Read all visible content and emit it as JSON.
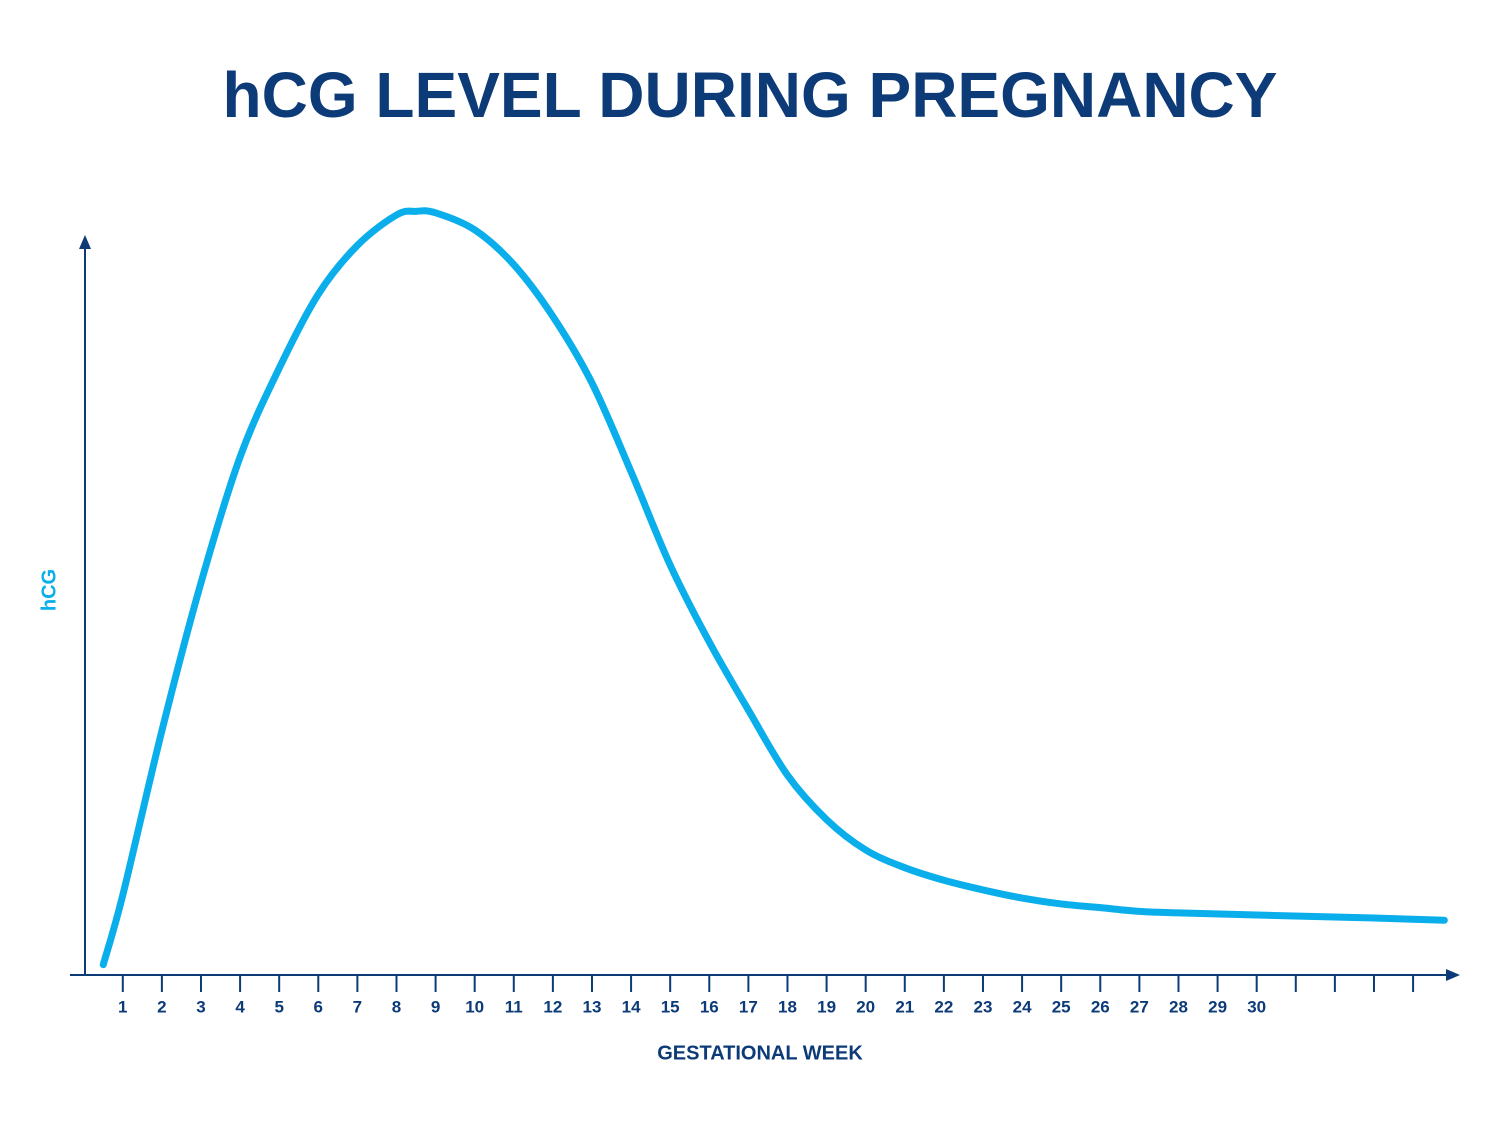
{
  "chart_data": {
    "type": "line",
    "title": "hCG LEVEL DURING PREGNANCY",
    "x_label": "GESTATIONAL WEEK",
    "y_label": "hCG",
    "x": [
      0.5,
      1,
      2,
      3,
      4,
      5,
      6,
      7,
      8,
      8.5,
      9,
      10,
      11,
      12,
      13,
      14,
      15,
      16,
      17,
      18,
      19,
      20,
      21,
      22,
      23,
      24,
      25,
      26,
      27,
      28,
      30,
      33,
      34.8
    ],
    "series": [
      {
        "name": "hCG",
        "color": "#0aaeea",
        "values": [
          1.4,
          10.8,
          33,
          53,
          70,
          82,
          92,
          98.6,
          102.7,
          103.2,
          103,
          100.7,
          96,
          89,
          80,
          68,
          55.4,
          45,
          35.8,
          27,
          21,
          16.9,
          14.5,
          12.8,
          11.5,
          10.4,
          9.6,
          9.1,
          8.6,
          8.4,
          8.1,
          7.7,
          7.4
        ]
      }
    ],
    "xlim": [
      -0.35,
      35.2
    ],
    "ylim": [
      0,
      100
    ],
    "xticks": [
      1,
      2,
      3,
      4,
      5,
      6,
      7,
      8,
      9,
      10,
      11,
      12,
      13,
      14,
      15,
      16,
      17,
      18,
      19,
      20,
      21,
      22,
      23,
      24,
      25,
      26,
      27,
      28,
      29,
      30
    ],
    "xticks_unlabeled": [
      31,
      32,
      33,
      34
    ],
    "axis_color": "#0d3b78",
    "title_color": "#0d3b78",
    "y_label_color": "#0aaeea"
  }
}
